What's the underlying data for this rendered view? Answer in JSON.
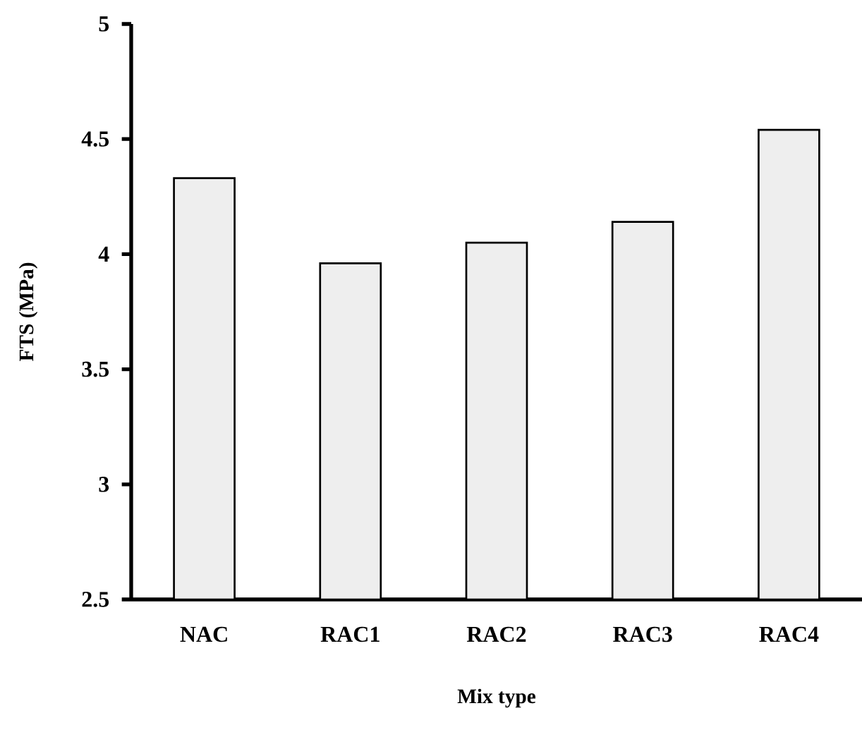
{
  "chart_data": {
    "type": "bar",
    "xlabel": "Mix type",
    "ylabel": "FTS (MPa)",
    "categories": [
      "NAC",
      "RAC1",
      "RAC2",
      "RAC3",
      "RAC4"
    ],
    "values": [
      4.33,
      3.96,
      4.05,
      4.14,
      4.54
    ],
    "color": "#eeeeee",
    "ylim": [
      2.5,
      5
    ],
    "yticks": [
      2.5,
      3,
      3.5,
      4,
      4.5,
      5
    ],
    "grid": false
  }
}
